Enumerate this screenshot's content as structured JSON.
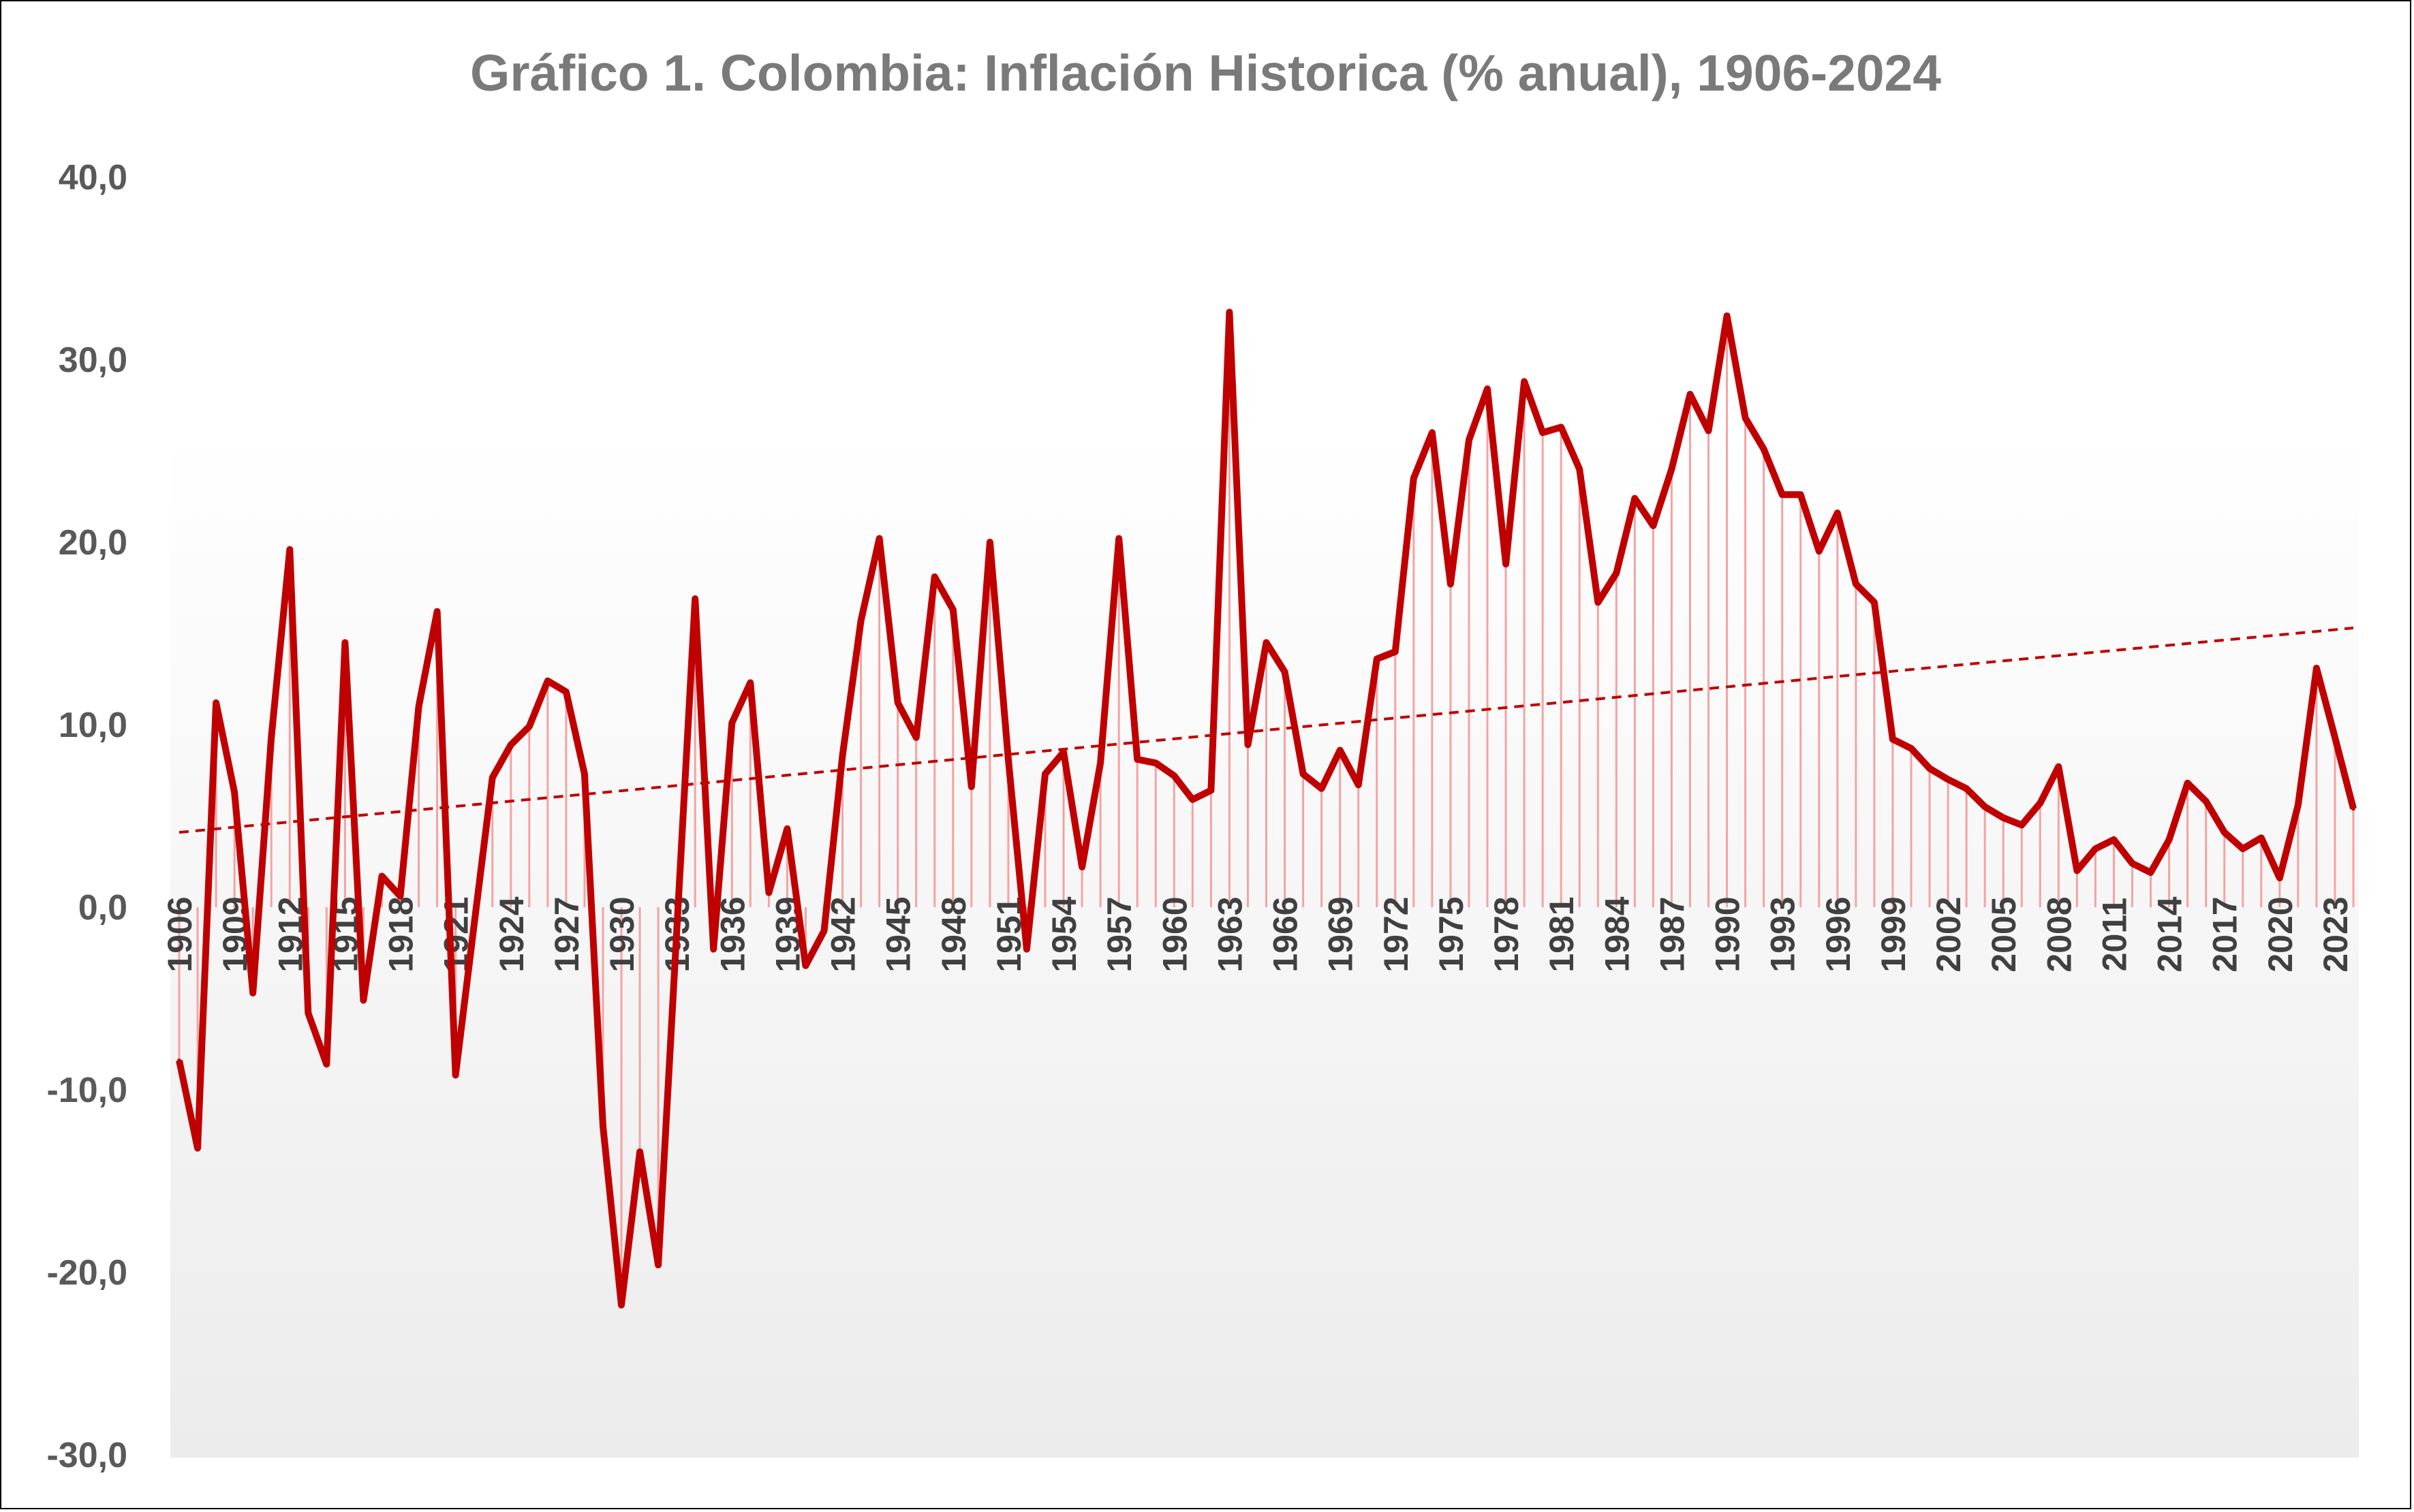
{
  "colors": {
    "line": "#c00000",
    "drop": "#f4a3a3",
    "trend": "#c00000",
    "tick_text": "#595959",
    "title": "#7a7a7a"
  },
  "chart_data": {
    "type": "line",
    "title": "Gráfico 1. Colombia: Inflación Historica (% anual), 1906-2024",
    "xlabel": "",
    "ylabel": "",
    "ylim": [
      -30,
      40
    ],
    "yticks": [
      "40,0",
      "30,0",
      "20,0",
      "10,0",
      "0,0",
      "-10,0",
      "-20,0",
      "-30,0"
    ],
    "ytick_values": [
      40,
      30,
      20,
      10,
      0,
      -10,
      -20,
      -30
    ],
    "xtick_labels": [
      "1906",
      "1909",
      "1912",
      "1915",
      "1918",
      "1921",
      "1924",
      "1927",
      "1930",
      "1933",
      "1936",
      "1939",
      "1942",
      "1945",
      "1948",
      "1951",
      "1954",
      "1957",
      "1960",
      "1963",
      "1966",
      "1969",
      "1972",
      "1975",
      "1978",
      "1981",
      "1984",
      "1987",
      "1990",
      "1993",
      "1996",
      "1999",
      "2002",
      "2005",
      "2008",
      "2011",
      "2014",
      "2017",
      "2020",
      "2023"
    ],
    "x_start": 1906,
    "x_end": 2024,
    "grid": false,
    "legend": "none",
    "drop_lines": true,
    "trendline": {
      "type": "linear",
      "style": "dashed",
      "start_value": 4.1,
      "end_value": 15.3
    },
    "series": [
      {
        "values": [
          -8.4,
          -13.2,
          11.2,
          6.3,
          -4.7,
          9.3,
          19.6,
          -5.8,
          -8.6,
          14.5,
          -5.1,
          1.7,
          0.6,
          11.0,
          16.2,
          -9.2,
          -1.0,
          7.1,
          8.9,
          9.9,
          12.4,
          11.8,
          7.3,
          -12.0,
          -21.8,
          -13.4,
          -19.6,
          -1.4,
          16.9,
          -2.3,
          10.1,
          12.3,
          0.8,
          4.3,
          -3.2,
          -1.3,
          8.3,
          15.7,
          20.2,
          11.2,
          9.3,
          18.1,
          16.3,
          6.6,
          20.0,
          8.1,
          -2.3,
          7.3,
          8.5,
          2.2,
          7.9,
          20.2,
          8.1,
          7.9,
          7.2,
          5.9,
          6.4,
          32.6,
          8.9,
          14.5,
          12.9,
          7.3,
          6.5,
          8.6,
          6.7,
          13.6,
          14.0,
          23.5,
          26.0,
          17.7,
          25.6,
          28.4,
          18.8,
          28.8,
          26.0,
          26.3,
          24.0,
          16.7,
          18.3,
          22.4,
          20.9,
          24.0,
          28.1,
          26.1,
          32.4,
          26.8,
          25.1,
          22.6,
          22.6,
          19.5,
          21.6,
          17.7,
          16.7,
          9.2,
          8.7,
          7.6,
          7.0,
          6.5,
          5.5,
          4.9,
          4.5,
          5.7,
          7.7,
          2.0,
          3.2,
          3.7,
          2.4,
          1.9,
          3.7,
          6.8,
          5.8,
          4.1,
          3.2,
          3.8,
          1.6,
          5.6,
          13.1,
          9.3,
          5.4
        ]
      }
    ]
  }
}
